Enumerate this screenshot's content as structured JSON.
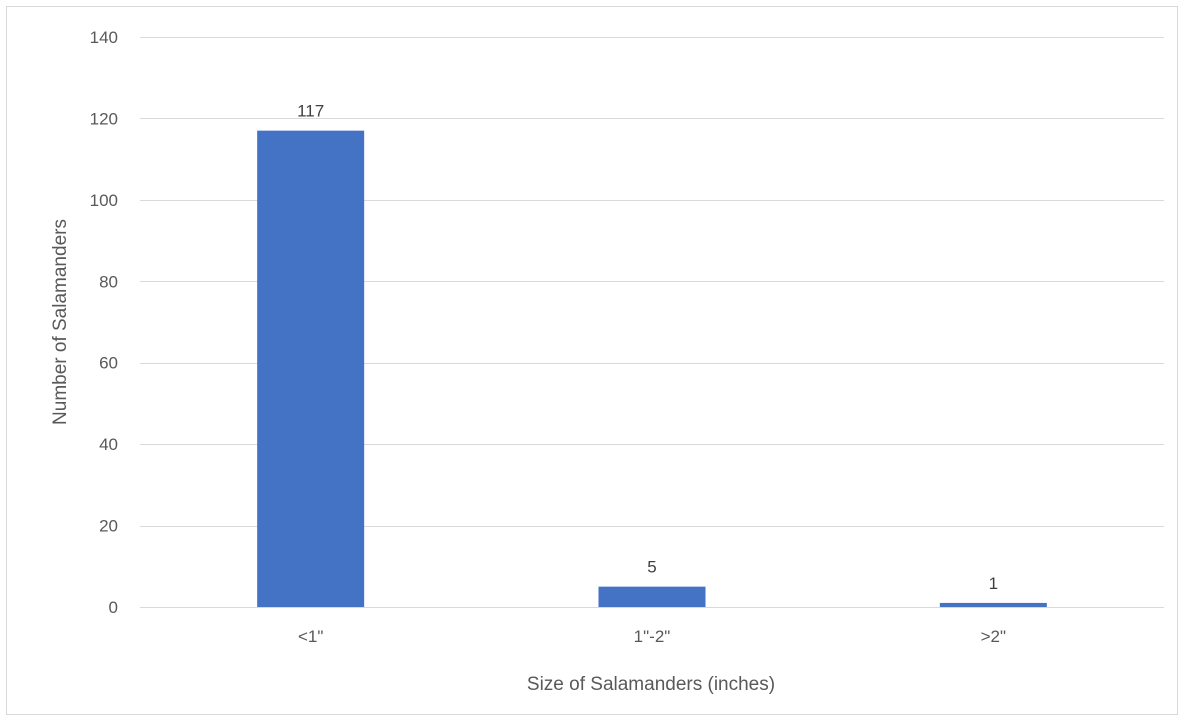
{
  "chart_data": {
    "type": "bar",
    "title": "",
    "categories": [
      "<1\"",
      "1\"-2\"",
      ">2\""
    ],
    "series": [
      {
        "values": [
          117,
          5,
          1
        ],
        "color": "#4472c4"
      }
    ],
    "data_labels": [
      "117",
      "5",
      "1"
    ],
    "xlabel": "Size of Salamanders (inches)",
    "ylabel": "Number of Salamanders",
    "ylim": [
      0,
      140
    ],
    "yticks": [
      0,
      20,
      40,
      60,
      80,
      100,
      120,
      140
    ],
    "ytick_labels": [
      "0",
      "20",
      "40",
      "60",
      "80",
      "100",
      "120",
      "140"
    ],
    "grid": true,
    "gridline_color": "#d9d9d9",
    "legend": "none"
  }
}
